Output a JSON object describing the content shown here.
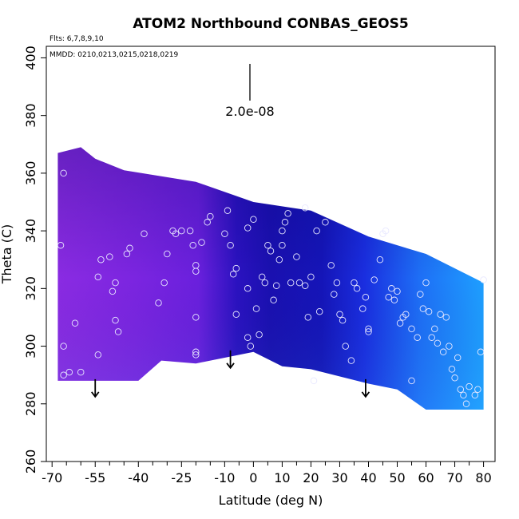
{
  "chart_data": {
    "type": "heatmap",
    "title": "ATOM2 Northbound CONBAS_GEOS5",
    "annotations": {
      "flights": "Flts: 6,7,8,9,10",
      "dates": "MMDD: 0210,0213,0215,0218,0219",
      "scale": "2.0e-08"
    },
    "xlabel": "Latitude (deg N)",
    "ylabel": "Theta (C)",
    "xlim": [
      -72,
      84
    ],
    "ylim": [
      260,
      404
    ],
    "x_ticks": [
      -70,
      -55,
      -40,
      -25,
      -10,
      0,
      10,
      20,
      30,
      40,
      50,
      60,
      70,
      80
    ],
    "x_minor_ticks": [
      -65,
      -60,
      -50,
      -45,
      -35,
      -30,
      -20,
      -15,
      -5,
      5,
      15,
      25,
      35,
      45,
      55,
      65,
      75
    ],
    "y_ticks": [
      260,
      280,
      300,
      320,
      340,
      360,
      380,
      400
    ],
    "colors": {
      "south": "#8a2be2",
      "mid": "#1a10b0",
      "north": "#1e9fff",
      "outline": "#e8e8ff"
    },
    "field_top": [
      [
        -68,
        367
      ],
      [
        -60,
        369
      ],
      [
        -55,
        365
      ],
      [
        -45,
        361
      ],
      [
        -20,
        357
      ],
      [
        0,
        350
      ],
      [
        20,
        347
      ],
      [
        40,
        338
      ],
      [
        60,
        332
      ],
      [
        80,
        322
      ]
    ],
    "field_bottom": [
      [
        80,
        278
      ],
      [
        60,
        278
      ],
      [
        50,
        285
      ],
      [
        40,
        287
      ],
      [
        20,
        292
      ],
      [
        10,
        293
      ],
      [
        0,
        298
      ],
      [
        -20,
        294
      ],
      [
        -32,
        295
      ],
      [
        -40,
        288
      ],
      [
        -68,
        288
      ]
    ],
    "wind_arrows": [
      {
        "lat": -55,
        "theta": 288
      },
      {
        "lat": -8,
        "theta": 298
      },
      {
        "lat": 39,
        "theta": 288
      }
    ],
    "sample_points": [
      [
        -67,
        335
      ],
      [
        -66,
        360
      ],
      [
        -66,
        300
      ],
      [
        -66,
        290
      ],
      [
        -64,
        291
      ],
      [
        -62,
        308
      ],
      [
        -60,
        291
      ],
      [
        -54,
        297
      ],
      [
        -54,
        324
      ],
      [
        -53,
        330
      ],
      [
        -50,
        331
      ],
      [
        -49,
        319
      ],
      [
        -48,
        322
      ],
      [
        -48,
        309
      ],
      [
        -47,
        305
      ],
      [
        -44,
        332
      ],
      [
        -43,
        334
      ],
      [
        -38,
        339
      ],
      [
        -33,
        315
      ],
      [
        -31,
        322
      ],
      [
        -30,
        332
      ],
      [
        -28,
        340
      ],
      [
        -27,
        339
      ],
      [
        -25,
        340
      ],
      [
        -22,
        340
      ],
      [
        -21,
        335
      ],
      [
        -20,
        326
      ],
      [
        -20,
        328
      ],
      [
        -20,
        298
      ],
      [
        -20,
        297
      ],
      [
        -20,
        310
      ],
      [
        -18,
        336
      ],
      [
        -16,
        343
      ],
      [
        -15,
        345
      ],
      [
        -10,
        339
      ],
      [
        -9,
        347
      ],
      [
        -8,
        335
      ],
      [
        -7,
        325
      ],
      [
        -6,
        327
      ],
      [
        -6,
        311
      ],
      [
        -2,
        341
      ],
      [
        -2,
        320
      ],
      [
        -2,
        303
      ],
      [
        -1,
        300
      ],
      [
        0,
        344
      ],
      [
        1,
        313
      ],
      [
        2,
        304
      ],
      [
        3,
        324
      ],
      [
        4,
        322
      ],
      [
        5,
        335
      ],
      [
        6,
        333
      ],
      [
        7,
        316
      ],
      [
        8,
        321
      ],
      [
        9,
        330
      ],
      [
        10,
        335
      ],
      [
        10,
        340
      ],
      [
        11,
        343
      ],
      [
        12,
        346
      ],
      [
        13,
        322
      ],
      [
        15,
        331
      ],
      [
        16,
        322
      ],
      [
        18,
        348
      ],
      [
        18,
        321
      ],
      [
        19,
        310
      ],
      [
        20,
        324
      ],
      [
        21,
        288
      ],
      [
        22,
        340
      ],
      [
        23,
        312
      ],
      [
        25,
        343
      ],
      [
        27,
        328
      ],
      [
        28,
        318
      ],
      [
        29,
        322
      ],
      [
        30,
        311
      ],
      [
        31,
        309
      ],
      [
        32,
        300
      ],
      [
        34,
        295
      ],
      [
        35,
        322
      ],
      [
        36,
        320
      ],
      [
        38,
        313
      ],
      [
        39,
        317
      ],
      [
        40,
        306
      ],
      [
        40,
        305
      ],
      [
        42,
        323
      ],
      [
        44,
        330
      ],
      [
        45,
        339
      ],
      [
        46,
        340
      ],
      [
        47,
        317
      ],
      [
        48,
        320
      ],
      [
        49,
        316
      ],
      [
        50,
        319
      ],
      [
        51,
        308
      ],
      [
        52,
        310
      ],
      [
        53,
        311
      ],
      [
        55,
        306
      ],
      [
        55,
        288
      ],
      [
        57,
        303
      ],
      [
        58,
        318
      ],
      [
        59,
        313
      ],
      [
        60,
        322
      ],
      [
        61,
        312
      ],
      [
        62,
        303
      ],
      [
        63,
        306
      ],
      [
        64,
        301
      ],
      [
        65,
        311
      ],
      [
        66,
        298
      ],
      [
        67,
        310
      ],
      [
        68,
        300
      ],
      [
        69,
        292
      ],
      [
        70,
        289
      ],
      [
        71,
        296
      ],
      [
        72,
        285
      ],
      [
        73,
        283
      ],
      [
        74,
        280
      ],
      [
        75,
        286
      ],
      [
        77,
        283
      ],
      [
        78,
        285
      ],
      [
        79,
        298
      ],
      [
        80,
        323
      ]
    ]
  }
}
